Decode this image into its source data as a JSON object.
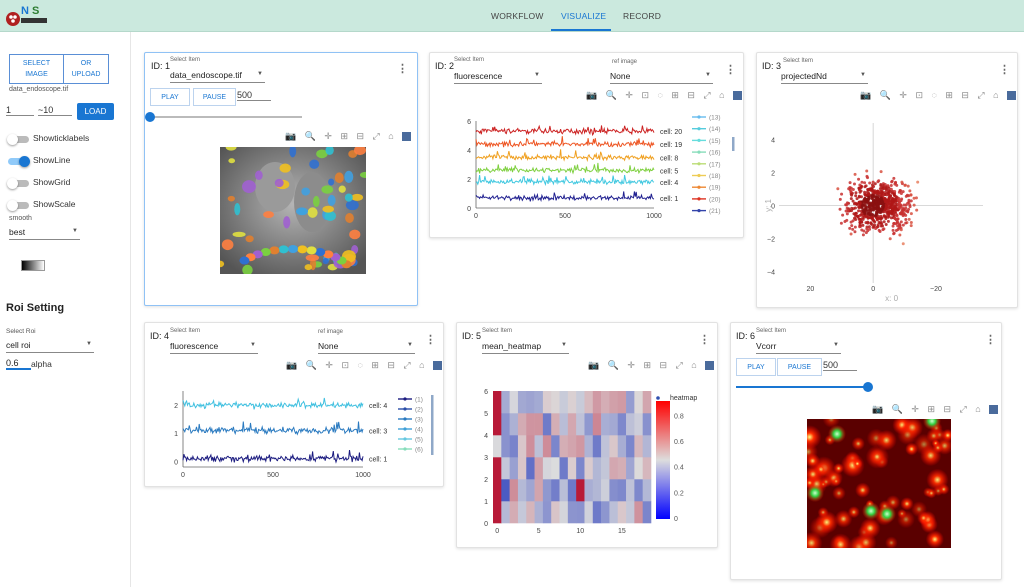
{
  "nav": {
    "workflow": "WORKFLOW",
    "visualize": "VISUALIZE",
    "record": "RECORD"
  },
  "sidebar": {
    "select_image": [
      "SELECT",
      "IMAGE"
    ],
    "upload": [
      "OR",
      "UPLOAD"
    ],
    "filename": "data_endoscope.tif",
    "range_start": "1",
    "range_end": "~10",
    "load": "LOAD",
    "switches": [
      {
        "label": "Showticklabels",
        "on": false
      },
      {
        "label": "ShowLine",
        "on": true
      },
      {
        "label": "ShowGrid",
        "on": false
      },
      {
        "label": "ShowScale",
        "on": false
      }
    ],
    "smooth_label": "smooth",
    "smooth_value": "best",
    "roi_title": "Roi Setting",
    "select_roi_label": "Select Roi",
    "roi_value": "cell  roi",
    "alpha_value": "0.6",
    "alpha_label": "alpha"
  },
  "panels": {
    "p1": {
      "id": "ID: 1",
      "select_label": "Select Item",
      "select_value": "data_endoscope.tif",
      "play": "PLAY",
      "pause": "PAUSE",
      "interval": "500",
      "slider": 0.0
    },
    "p2": {
      "id": "ID: 2",
      "select_label": "Select Item",
      "select_value": "fluorescence",
      "ref_label": "ref image",
      "ref_value": "None"
    },
    "p3": {
      "id": "ID: 3",
      "select_label": "Select Item",
      "select_value": "projectedNd"
    },
    "p4": {
      "id": "ID: 4",
      "select_label": "Select Item",
      "select_value": "fluorescence",
      "ref_label": "ref image",
      "ref_value": "None"
    },
    "p5": {
      "id": "ID: 5",
      "select_label": "Select Item",
      "select_value": "mean_heatmap"
    },
    "p6": {
      "id": "ID: 6",
      "select_label": "Select Item",
      "select_value": "Vcorr",
      "play": "PLAY",
      "pause": "PAUSE",
      "interval": "500",
      "slider": 1.0
    }
  },
  "chart_data": [
    {
      "type": "line",
      "panel": "p2",
      "x_ticks": [
        "0",
        "500",
        "1000"
      ],
      "y_ticks": [
        "0",
        "2",
        "4",
        "6"
      ],
      "xlim": [
        0,
        1000
      ],
      "ylim": [
        0,
        6
      ],
      "series": [
        {
          "name": "cell: 20",
          "offset": 5.3,
          "color": "#cc2222"
        },
        {
          "name": "cell: 19",
          "offset": 4.4,
          "color": "#ee5522"
        },
        {
          "name": "cell: 8",
          "offset": 3.5,
          "color": "#f0a020"
        },
        {
          "name": "cell: 5",
          "offset": 2.6,
          "color": "#7fd040"
        },
        {
          "name": "cell: 4",
          "offset": 1.8,
          "color": "#40c8e0"
        },
        {
          "name": "cell: 1",
          "offset": 0.7,
          "color": "#202090"
        }
      ],
      "legend": [
        "(13)",
        "(14)",
        "(15)",
        "(16)",
        "(17)",
        "(18)",
        "(19)",
        "(20)",
        "(21)"
      ],
      "legend_colors": [
        "#66bbee",
        "#55ccdd",
        "#66dddd",
        "#88ddbb",
        "#bbdd77",
        "#eecc55",
        "#ee8833",
        "#dd3322",
        "#3344aa"
      ]
    },
    {
      "type": "scatter",
      "panel": "p3",
      "x_ticks": [
        "−20",
        "0",
        "20"
      ],
      "y_ticks": [
        "4",
        "2",
        "0",
        "−2",
        "−4"
      ],
      "xlim": [
        -30,
        35
      ],
      "ylim": [
        -4.7,
        5
      ],
      "xlabel": "x: 0",
      "ylabel": "y: 1"
    },
    {
      "type": "line",
      "panel": "p4",
      "x_ticks": [
        "0",
        "500",
        "1000"
      ],
      "y_ticks": [
        "0",
        "1",
        "2"
      ],
      "xlim": [
        0,
        1000
      ],
      "ylim": [
        -0.2,
        2.5
      ],
      "series": [
        {
          "name": "cell: 4",
          "offset": 2.0,
          "color": "#40c0e0"
        },
        {
          "name": "cell: 3",
          "offset": 1.1,
          "color": "#2a7ac0"
        },
        {
          "name": "cell: 1",
          "offset": 0.1,
          "color": "#1c1c80"
        }
      ],
      "legend": [
        "(1)",
        "(2)",
        "(3)",
        "(4)",
        "(5)",
        "(6)"
      ],
      "legend_colors": [
        "#1c1c80",
        "#2a4ea8",
        "#2a7ac0",
        "#40a0d8",
        "#66c8e0",
        "#88ddbb"
      ]
    },
    {
      "type": "heatmap",
      "panel": "p5",
      "x_ticks": [
        "0",
        "5",
        "10",
        "15"
      ],
      "y_ticks": [
        "0",
        "1",
        "2",
        "3",
        "4",
        "5",
        "6"
      ],
      "cols": 19,
      "rows": 6,
      "colorbar_title": "heatmap",
      "colorbar_ticks": [
        "0",
        "0.2",
        "0.4",
        "0.6",
        "0.8"
      ]
    }
  ]
}
